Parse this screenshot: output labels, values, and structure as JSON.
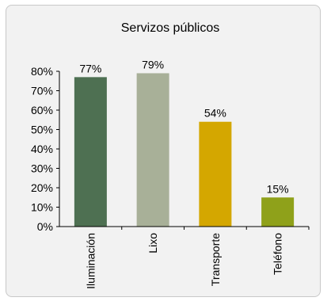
{
  "chart_data": {
    "type": "bar",
    "title": "Servizos públicos",
    "categories": [
      "Iluminación",
      "Lixo",
      "Transporte",
      "Teléfono"
    ],
    "values": [
      77,
      79,
      54,
      15
    ],
    "value_labels": [
      "77%",
      "79%",
      "54%",
      "15%"
    ],
    "colors": [
      "#4e7052",
      "#a8b098",
      "#d4a700",
      "#8fa11a"
    ],
    "ylim": [
      0,
      80
    ],
    "yticks": [
      0,
      10,
      20,
      30,
      40,
      50,
      60,
      70,
      80
    ],
    "ytick_labels": [
      "0%",
      "10%",
      "20%",
      "30%",
      "40%",
      "50%",
      "60%",
      "70%",
      "80%"
    ],
    "grid": false,
    "legend": "none"
  }
}
